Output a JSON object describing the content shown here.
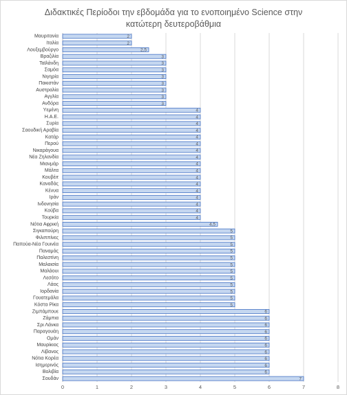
{
  "chart_data": {
    "type": "hbar",
    "title": "Διδακτικές Περίοδοι την εβδομάδα για το ενοποιημένο Science στην κατώτερη δευτεροβάθμια",
    "categories": [
      "Μαυριτανία",
      "Ιταλία",
      "Λουξεμβούργο",
      "Βραζιλία",
      "Ταϊλάνδη",
      "Σαμόα",
      "Νιγηρία",
      "Πακιστάν",
      "Αυστραλία",
      "Αγγλία",
      "Ανδόρα",
      "Υεμένη",
      "Η.Α.Ε.",
      "Συρία",
      "Σαουδική Αραβία",
      "Κατάρ",
      "Περού",
      "Νικαράγουα",
      "Νέα Ζηλανδία",
      "Μιανμάρ",
      "Μάλτα",
      "Κουβέιτ",
      "Καναδάς",
      "Κένυα",
      "Ιράν",
      "Ινδονησία",
      "Κούβα",
      "Τουρκία",
      "Νότια Αφρική",
      "Σιγκαπούρη",
      "Φιλιππίνες",
      "Παπούα-Νέα Γουινέα",
      "Παναμάς",
      "Παλεστίνη",
      "Μαλαισία",
      "Μαλάουι",
      "Λεσότο",
      "Λάος",
      "Ιορδανία",
      "Γουατεμάλα",
      "Κόστα Ρίκα",
      "Ζιμπάμπουε",
      "Ζάμπια",
      "Σρι Λάνκα",
      "Παραγουάη",
      "Ομάν",
      "Μαυρίκιος",
      "Λίβανος",
      "Νότια Κορέα",
      "Ισημερινός",
      "Βολιβία",
      "Σουδάν"
    ],
    "values": [
      2,
      2,
      2.5,
      3,
      3,
      3,
      3,
      3,
      3,
      3,
      3,
      4,
      4,
      4,
      4,
      4,
      4,
      4,
      4,
      4,
      4,
      4,
      4,
      4,
      4,
      4,
      4,
      4,
      4.5,
      5,
      5,
      5,
      5,
      5,
      5,
      5,
      5,
      5,
      5,
      5,
      5,
      6,
      6,
      6,
      6,
      6,
      6,
      6,
      6,
      6,
      6,
      7
    ],
    "value_labels": [
      "2",
      "2",
      "2,5",
      "3",
      "3",
      "3",
      "3",
      "3",
      "3",
      "3",
      "3",
      "4",
      "4",
      "4",
      "4",
      "4",
      "4",
      "4",
      "4",
      "4",
      "4",
      "4",
      "4",
      "4",
      "4",
      "4",
      "4",
      "4",
      "4,5",
      "5",
      "5",
      "5",
      "5",
      "5",
      "5",
      "5",
      "5",
      "5",
      "5",
      "5",
      "5",
      "6",
      "6",
      "6",
      "6",
      "6",
      "6",
      "6",
      "6",
      "6",
      "6",
      "7"
    ],
    "color": "#c5d7f0",
    "border_color": "#4472c4",
    "xlim": [
      0,
      8
    ],
    "xticks": [
      0,
      1,
      2,
      3,
      4,
      5,
      6,
      7,
      8
    ],
    "grid": true
  }
}
